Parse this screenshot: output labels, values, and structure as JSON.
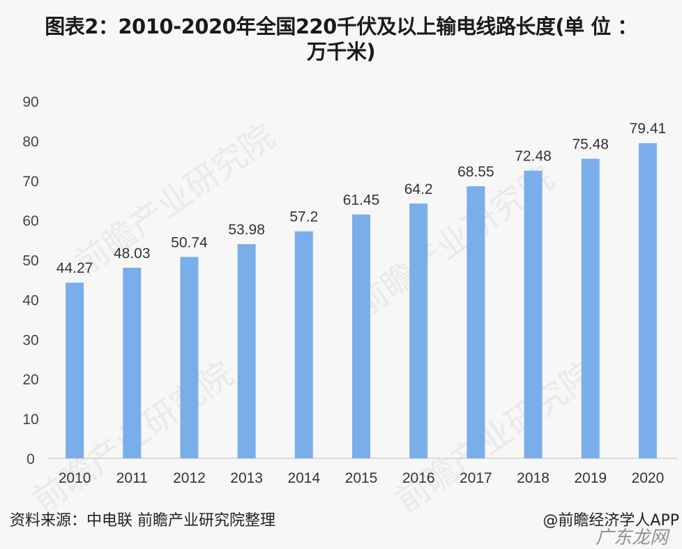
{
  "chart_data": {
    "type": "bar",
    "title": "图表2：2010-2020年全国220千伏及以上输电线路长度(单 位 ：",
    "title_line2": "万千米)",
    "categories": [
      "2010",
      "2011",
      "2012",
      "2013",
      "2014",
      "2015",
      "2016",
      "2017",
      "2018",
      "2019",
      "2020"
    ],
    "values": [
      44.27,
      48.03,
      50.74,
      53.98,
      57.2,
      61.45,
      64.2,
      68.55,
      72.48,
      75.48,
      79.41
    ],
    "data_labels": [
      "44.27",
      "48.03",
      "50.74",
      "53.98",
      "57.2",
      "61.45",
      "64.2",
      "68.55",
      "72.48",
      "75.48",
      "79.41"
    ],
    "ylim": [
      0,
      90
    ],
    "yticks": [
      "0",
      "10",
      "20",
      "30",
      "40",
      "50",
      "60",
      "70",
      "80",
      "90"
    ],
    "xlabel": "",
    "ylabel": "",
    "grid": false,
    "bar_color": "#7aaeea"
  },
  "footer": {
    "source": "资料来源：中电联 前瞻产业研究院整理",
    "credit": "@前瞻经济学人APP"
  },
  "watermarks": [
    "前瞻产业研究院",
    "广东龙网"
  ]
}
